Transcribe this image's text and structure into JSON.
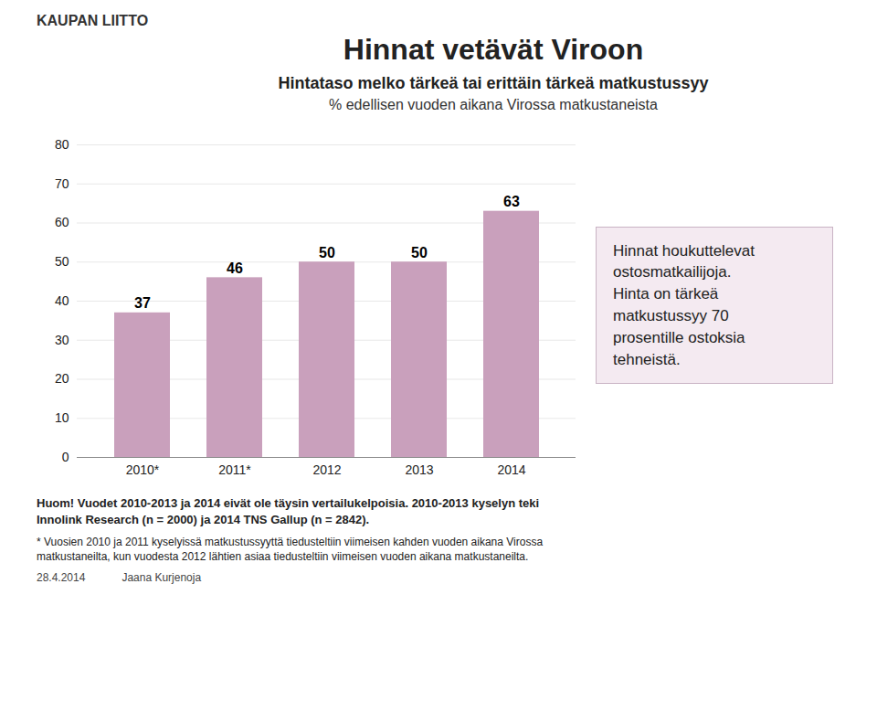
{
  "chart_data": {
    "type": "bar",
    "title": "Hinnat vetävät Viroon",
    "subtitle": [
      "Hintataso melko tärkeä tai erittäin tärkeä matkustussyy",
      "% edellisen vuoden aikana Virossa matkustaneista"
    ],
    "categories": [
      "2010*",
      "2011*",
      "2012",
      "2013",
      "2014"
    ],
    "values": [
      37,
      46,
      50,
      50,
      63
    ],
    "color": "#c9a0bc",
    "ylim": [
      0,
      80
    ],
    "yticks": [
      0,
      10,
      20,
      30,
      40,
      50,
      60,
      70,
      80
    ],
    "grid": true,
    "data_labels": true,
    "annotations": [
      "KAUPAN LIITTO",
      "Hinnat houkuttelevat\nostosmatkailijoja.\nHinta on tärkeä\nmatkustussyy 70\nprosentille ostoksia\ntehneistä.",
      "Huom! Vuodet 2010-2013 ja 2014 eivät ole täysin vertailukelpoisia. 2010-2013 kyselyn teki\nInnolink Research (n = 2000) ja 2014 TNS Gallup (n = 2842).",
      "* Vuosien 2010 ja 2011 kyselyissä matkustussyyttä tiedusteltiin viimeisen kahden vuoden aikana Virossa\nmatkustaneilta, kun vuodesta 2012 lähtien asiaa tiedusteltiin viimeisen vuoden aikana matkustaneilta.",
      "28.4.2014",
      "Jaana Kurjenoja"
    ]
  }
}
